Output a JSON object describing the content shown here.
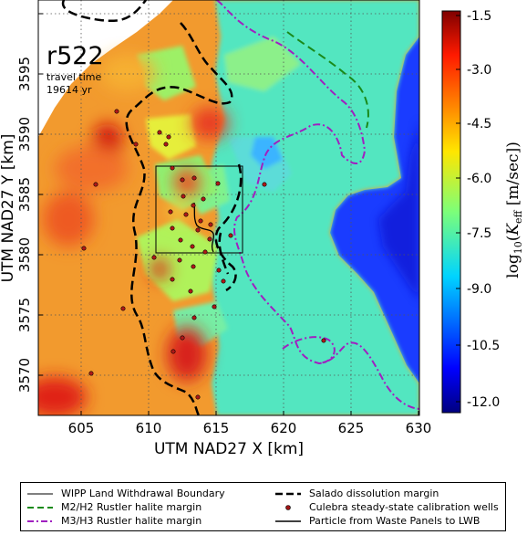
{
  "map": {
    "run_label": "r522",
    "travel_time_label": "travel time",
    "travel_time_value": "19614 yr"
  },
  "axes": {
    "xlabel": "UTM NAD27 X [km]",
    "ylabel": "UTM NAD27 Y [km]",
    "xticks": [
      "605",
      "610",
      "615",
      "620",
      "625",
      "630"
    ],
    "yticks": [
      "3570",
      "3575",
      "3580",
      "3585",
      "3590",
      "3595"
    ],
    "xlim": [
      601.6,
      630
    ],
    "ylim": [
      3566.5,
      3597.5
    ],
    "grid": true
  },
  "colorbar": {
    "label": "log10(Keff [m/sec])",
    "label_base": "log",
    "label_sub": "10",
    "label_k": "K",
    "label_eff": "eff",
    "label_unit": "[m/sec]",
    "ticks": [
      "-1.5",
      "-3.0",
      "-4.5",
      "-6.0",
      "-7.5",
      "-9.0",
      "-10.5",
      "-12.0"
    ],
    "range": [
      -12.5,
      -1.25
    ],
    "colormap": "jet"
  },
  "legend": {
    "items": [
      {
        "label": "WIPP Land Withdrawal Boundary",
        "style": "thin-solid",
        "color": "#000000"
      },
      {
        "label": "Salado dissolution margin",
        "style": "dashed",
        "color": "#000000"
      },
      {
        "label": "M2/H2 Rustler halite margin",
        "style": "dashed",
        "color": "#1a8a1a"
      },
      {
        "label": "Culebra steady-state calibration wells",
        "style": "dot",
        "color": "#a01414"
      },
      {
        "label": "M3/H3 Rustler halite margin",
        "style": "dash-dot",
        "color": "#a020c0"
      },
      {
        "label": "Particle from Waste Panels to LWB",
        "style": "solid",
        "color": "#000000"
      }
    ]
  }
}
